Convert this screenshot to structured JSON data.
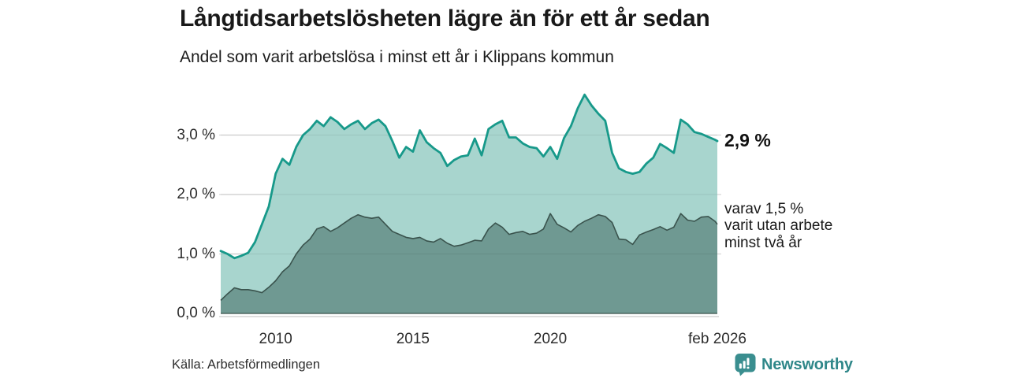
{
  "title": "Långtidsarbetslösheten lägre än för ett år sedan",
  "subtitle": "Andel som varit arbetslösa i minst ett år i Klippans kommun",
  "source": "Källa: Arbetsförmedlingen",
  "branding": {
    "name": "Newsworthy",
    "text_color": "#2f8789",
    "icon_color": "#3a8e8f"
  },
  "annotations": {
    "latest_total": "2,9 %",
    "subseries_lines": [
      "varav 1,5 %",
      "varit utan arbete",
      "minst två år"
    ]
  },
  "colors": {
    "background": "#ffffff",
    "grid": "#d8d8d8",
    "axis_line": "#c9c9c9",
    "total_line": "#17998a",
    "total_fill": "#a8d5ce",
    "sub_line": "#3a534d",
    "sub_fill": "#6f9992"
  },
  "chart_data": {
    "type": "area",
    "title": "Långtidsarbetslösheten lägre än för ett år sedan",
    "subtitle": "Andel som varit arbetslösa i minst ett år i Klippans kommun",
    "unit": "%",
    "grid": "horizontal",
    "x_range": [
      2008,
      2026.083
    ],
    "y_range": [
      0,
      3.8
    ],
    "x_axis_ticks": [
      {
        "label": "2010",
        "year": 2010
      },
      {
        "label": "2015",
        "year": 2015
      },
      {
        "label": "2020",
        "year": 2020
      },
      {
        "label": "feb 2026",
        "year": 2026.083
      }
    ],
    "y_axis_ticks": [
      {
        "label": "0,0 %",
        "value": 0
      },
      {
        "label": "1,0 %",
        "value": 1
      },
      {
        "label": "2,0 %",
        "value": 2
      },
      {
        "label": "3,0 %",
        "value": 3
      }
    ],
    "x": [
      2008,
      2008.25,
      2008.5,
      2008.75,
      2009,
      2009.25,
      2009.5,
      2009.75,
      2010,
      2010.25,
      2010.5,
      2010.75,
      2011,
      2011.25,
      2011.5,
      2011.75,
      2012,
      2012.25,
      2012.5,
      2012.75,
      2013,
      2013.25,
      2013.5,
      2013.75,
      2014,
      2014.25,
      2014.5,
      2014.75,
      2015,
      2015.25,
      2015.5,
      2015.75,
      2016,
      2016.25,
      2016.5,
      2016.75,
      2017,
      2017.25,
      2017.5,
      2017.75,
      2018,
      2018.25,
      2018.5,
      2018.75,
      2019,
      2019.25,
      2019.5,
      2019.75,
      2020,
      2020.25,
      2020.5,
      2020.75,
      2021,
      2021.25,
      2021.5,
      2021.75,
      2022,
      2022.25,
      2022.5,
      2022.75,
      2023,
      2023.25,
      2023.5,
      2023.75,
      2024,
      2024.25,
      2024.5,
      2024.75,
      2025,
      2025.25,
      2025.5,
      2025.75,
      2026,
      2026.083
    ],
    "series": [
      {
        "name": "Andel arbetslösa minst ett år",
        "latest_value": 2.9,
        "latest_label": "2,9 %",
        "line_color": "#17998a",
        "fill_color": "#a8d5ce",
        "values": [
          1.05,
          1.0,
          0.93,
          0.97,
          1.02,
          1.2,
          1.5,
          1.8,
          2.35,
          2.6,
          2.5,
          2.8,
          3.0,
          3.1,
          3.24,
          3.15,
          3.3,
          3.22,
          3.1,
          3.18,
          3.24,
          3.1,
          3.2,
          3.26,
          3.15,
          2.9,
          2.62,
          2.8,
          2.72,
          3.08,
          2.88,
          2.78,
          2.7,
          2.48,
          2.58,
          2.64,
          2.66,
          2.94,
          2.66,
          3.1,
          3.18,
          3.24,
          2.96,
          2.96,
          2.86,
          2.8,
          2.78,
          2.64,
          2.8,
          2.6,
          2.95,
          3.15,
          3.45,
          3.68,
          3.5,
          3.36,
          3.24,
          2.7,
          2.44,
          2.38,
          2.35,
          2.38,
          2.52,
          2.62,
          2.85,
          2.78,
          2.7,
          3.26,
          3.18,
          3.05,
          3.02,
          2.97,
          2.92,
          2.9
        ]
      },
      {
        "name": "Andel utan arbete minst två år",
        "latest_value": 1.5,
        "latest_label": "varav 1,5 % varit utan arbete minst två år",
        "line_color": "#3a534d",
        "fill_color": "#6f9992",
        "values": [
          0.22,
          0.33,
          0.43,
          0.4,
          0.4,
          0.38,
          0.35,
          0.44,
          0.55,
          0.7,
          0.8,
          1.0,
          1.15,
          1.25,
          1.42,
          1.46,
          1.38,
          1.44,
          1.52,
          1.6,
          1.66,
          1.62,
          1.6,
          1.62,
          1.5,
          1.38,
          1.33,
          1.28,
          1.26,
          1.28,
          1.22,
          1.2,
          1.26,
          1.18,
          1.13,
          1.15,
          1.19,
          1.23,
          1.22,
          1.42,
          1.52,
          1.45,
          1.33,
          1.36,
          1.38,
          1.33,
          1.35,
          1.42,
          1.68,
          1.5,
          1.44,
          1.37,
          1.48,
          1.55,
          1.6,
          1.66,
          1.63,
          1.53,
          1.25,
          1.24,
          1.16,
          1.32,
          1.37,
          1.41,
          1.46,
          1.4,
          1.45,
          1.68,
          1.57,
          1.55,
          1.62,
          1.63,
          1.55,
          1.5
        ]
      }
    ]
  }
}
